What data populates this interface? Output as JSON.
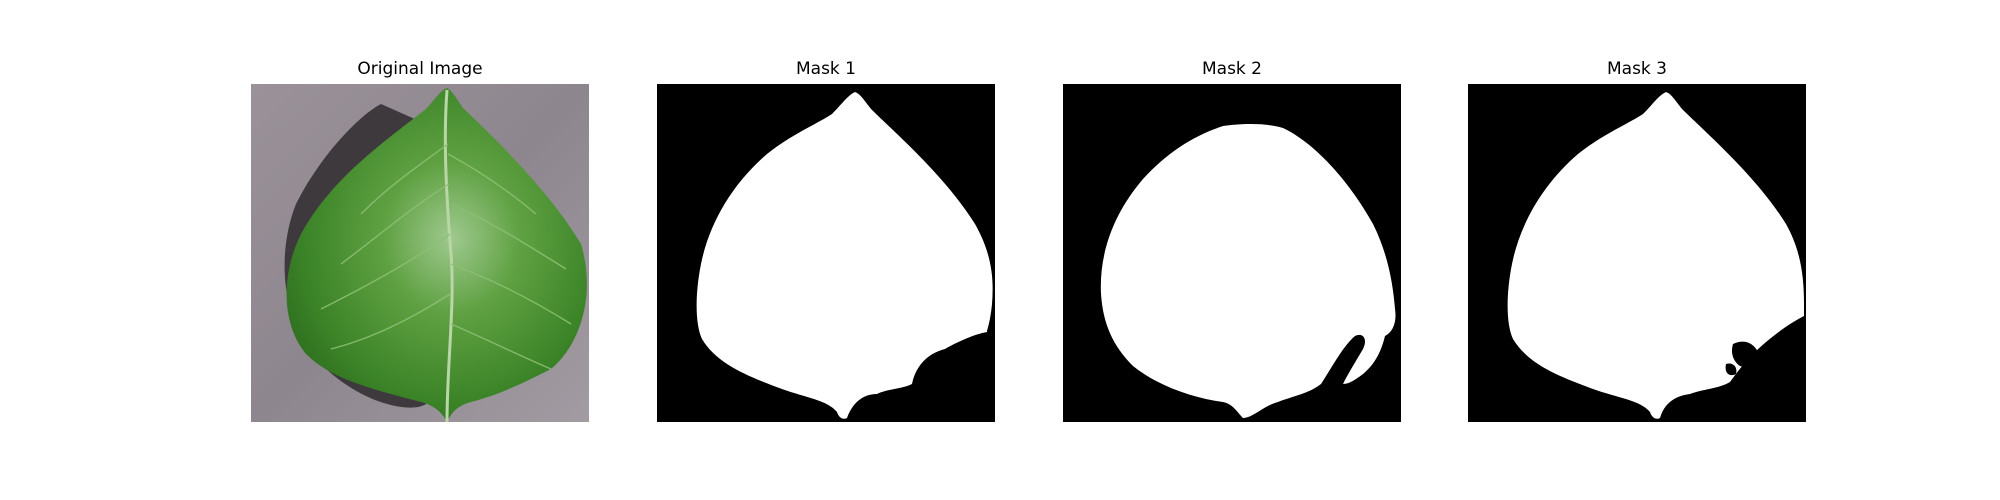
{
  "figure": {
    "panels": [
      {
        "title": "Original Image",
        "kind": "photo",
        "subject": "leaf-photo"
      },
      {
        "title": "Mask 1",
        "kind": "binary-mask"
      },
      {
        "title": "Mask 2",
        "kind": "binary-mask"
      },
      {
        "title": "Mask 3",
        "kind": "binary-mask"
      }
    ]
  },
  "colors": {
    "mask_background": "#000000",
    "mask_foreground": "#ffffff",
    "leaf_green": "#3f8a2a",
    "background_gray": "#8f8790"
  }
}
